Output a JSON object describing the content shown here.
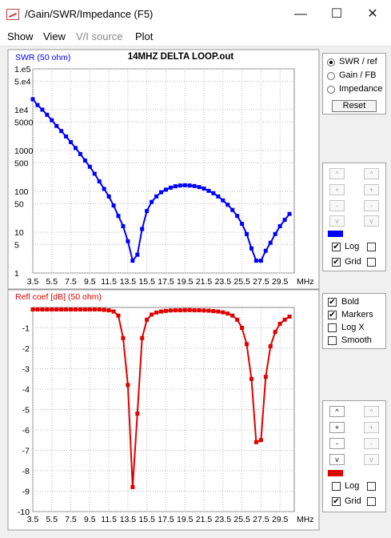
{
  "window": {
    "title": "/Gain/SWR/Impedance (F5)",
    "minimize": "—",
    "maximize": "☐",
    "close": "✕"
  },
  "menu": [
    {
      "label": "Show",
      "enabled": true
    },
    {
      "label": "View",
      "enabled": true
    },
    {
      "label": "V/I source",
      "enabled": false
    },
    {
      "label": "Plot",
      "enabled": true
    }
  ],
  "mode_options": {
    "options": [
      {
        "label": "SWR / ref",
        "selected": true
      },
      {
        "label": "Gain / FB",
        "selected": false
      },
      {
        "label": "Impedance",
        "selected": false
      }
    ],
    "reset": "Reset"
  },
  "top_scale": {
    "buttons": [
      "^",
      "+",
      "-",
      "v"
    ],
    "log_label": "Log",
    "grid_label": "Grid",
    "log_checked": true,
    "grid_checked": true,
    "trace_color": "#0000ff"
  },
  "display_options": [
    {
      "label": "Bold",
      "checked": true
    },
    {
      "label": "Markers",
      "checked": true
    },
    {
      "label": "Log X",
      "checked": false
    },
    {
      "label": "Smooth",
      "checked": false
    }
  ],
  "bottom_scale": {
    "buttons": [
      "^",
      "+",
      "-",
      "v"
    ],
    "log_label": "Log",
    "grid_label": "Grid",
    "log_checked": false,
    "grid_checked": true,
    "trace_color": "#e00000"
  },
  "chart_data": [
    {
      "type": "line",
      "title": "14MHZ DELTA LOOP.out",
      "ylabel": "SWR (50 ohm)",
      "xunit": "MHz",
      "yscale": "log",
      "ylim": [
        1,
        100000
      ],
      "yticks": [
        "1",
        "5",
        "10",
        "50",
        "100",
        "500",
        "1000",
        "5000",
        "1e4",
        "5.e4",
        "1.e5"
      ],
      "xticks": [
        "3.5",
        "5.5",
        "7.5",
        "9.5",
        "11.5",
        "13.5",
        "15.5",
        "17.5",
        "19.5",
        "21.5",
        "23.5",
        "25.5",
        "27.5",
        "29.5"
      ],
      "xlim": [
        3.5,
        31
      ],
      "grid": true,
      "color": "#0000ff",
      "x": [
        3.5,
        4,
        4.5,
        5,
        5.5,
        6,
        6.5,
        7,
        7.5,
        8,
        8.5,
        9,
        9.5,
        10,
        10.5,
        11,
        11.5,
        12,
        12.5,
        13,
        13.5,
        14,
        14.5,
        15,
        15.5,
        16,
        16.5,
        17,
        17.5,
        18,
        18.5,
        19,
        19.5,
        20,
        20.5,
        21,
        21.5,
        22,
        22.5,
        23,
        23.5,
        24,
        24.5,
        25,
        25.5,
        26,
        26.5,
        27,
        27.5,
        28,
        28.5,
        29,
        29.5,
        30,
        30.5
      ],
      "y": [
        18000,
        13000,
        10000,
        7500,
        5500,
        4000,
        3000,
        2200,
        1600,
        1150,
        820,
        570,
        400,
        270,
        175,
        115,
        75,
        45,
        25,
        14,
        6,
        2,
        2.8,
        12,
        33,
        55,
        75,
        95,
        110,
        123,
        133,
        139,
        141,
        139,
        135,
        127,
        117,
        103,
        90,
        75,
        60,
        47,
        35,
        25,
        16,
        9,
        4,
        2,
        2,
        3.5,
        5.5,
        9,
        14,
        20,
        28
      ]
    },
    {
      "type": "line",
      "title": "",
      "ylabel": "Refl coef [dB] (50 ohm)",
      "xunit": "MHz",
      "ylim": [
        -10,
        0
      ],
      "yticks": [
        "-1",
        "-2",
        "-3",
        "-4",
        "-5",
        "-6",
        "-7",
        "-8",
        "-9",
        "-10"
      ],
      "xticks": [
        "3.5",
        "5.5",
        "7.5",
        "9.5",
        "11.5",
        "13.5",
        "15.5",
        "17.5",
        "19.5",
        "21.5",
        "23.5",
        "25.5",
        "27.5",
        "29.5"
      ],
      "xlim": [
        3.5,
        31
      ],
      "grid": true,
      "color": "#e00000",
      "x": [
        3.5,
        4,
        4.5,
        5,
        5.5,
        6,
        6.5,
        7,
        7.5,
        8,
        8.5,
        9,
        9.5,
        10,
        10.5,
        11,
        11.5,
        12,
        12.5,
        13,
        13.5,
        14,
        14.5,
        15,
        15.5,
        16,
        16.5,
        17,
        17.5,
        18,
        18.5,
        19,
        19.5,
        20,
        20.5,
        21,
        21.5,
        22,
        22.5,
        23,
        23.5,
        24,
        24.5,
        25,
        25.5,
        26,
        26.5,
        27,
        27.5,
        28,
        28.5,
        29,
        29.5,
        30,
        30.5
      ],
      "y": [
        -0.1,
        -0.1,
        -0.1,
        -0.1,
        -0.1,
        -0.1,
        -0.1,
        -0.1,
        -0.1,
        -0.1,
        -0.1,
        -0.1,
        -0.1,
        -0.1,
        -0.1,
        -0.12,
        -0.14,
        -0.2,
        -0.4,
        -1.5,
        -3.8,
        -8.8,
        -5.2,
        -1.5,
        -0.6,
        -0.35,
        -0.25,
        -0.2,
        -0.17,
        -0.15,
        -0.14,
        -0.14,
        -0.13,
        -0.13,
        -0.14,
        -0.14,
        -0.15,
        -0.16,
        -0.18,
        -0.2,
        -0.24,
        -0.3,
        -0.4,
        -0.6,
        -1.0,
        -1.8,
        -3.5,
        -6.6,
        -6.5,
        -3.4,
        -1.9,
        -1.2,
        -0.8,
        -0.6,
        -0.45
      ]
    }
  ]
}
